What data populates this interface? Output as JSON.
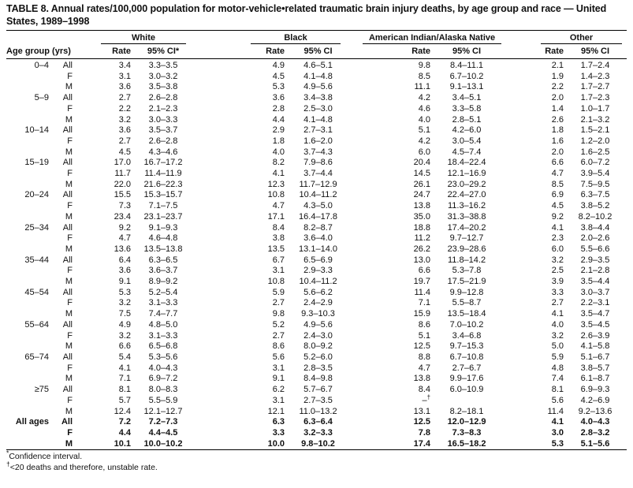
{
  "page": {
    "title": "TABLE 8. Annual rates/100,000 population for motor-vehicle•related traumatic brain injury deaths, by age group and race — United States, 1989–1998"
  },
  "table": {
    "age_header": "Age group (yrs)",
    "groups": [
      {
        "name": "White",
        "rate_label": "Rate",
        "ci_label": "95% CI*"
      },
      {
        "name": "Black",
        "rate_label": "Rate",
        "ci_label": "95% CI"
      },
      {
        "name": "American Indian/Alaska Native",
        "rate_label": "Rate",
        "ci_label": "95% CI"
      },
      {
        "name": "Other",
        "rate_label": "Rate",
        "ci_label": "95% CI"
      }
    ],
    "rows": [
      {
        "age": "0–4",
        "sex": "All",
        "w_rate": "3.4",
        "w_ci": "3.3–3.5",
        "b_rate": "4.9",
        "b_ci": "4.6–5.1",
        "ai_rate": "9.8",
        "ai_ci": "8.4–11.1",
        "o_rate": "2.1",
        "o_ci": "1.7–2.4"
      },
      {
        "age": "",
        "sex": "F",
        "w_rate": "3.1",
        "w_ci": "3.0–3.2",
        "b_rate": "4.5",
        "b_ci": "4.1–4.8",
        "ai_rate": "8.5",
        "ai_ci": "6.7–10.2",
        "o_rate": "1.9",
        "o_ci": "1.4–2.3"
      },
      {
        "age": "",
        "sex": "M",
        "w_rate": "3.6",
        "w_ci": "3.5–3.8",
        "b_rate": "5.3",
        "b_ci": "4.9–5.6",
        "ai_rate": "11.1",
        "ai_ci": "9.1–13.1",
        "o_rate": "2.2",
        "o_ci": "1.7–2.7"
      },
      {
        "age": "5–9",
        "sex": "All",
        "w_rate": "2.7",
        "w_ci": "2.6–2.8",
        "b_rate": "3.6",
        "b_ci": "3.4–3.8",
        "ai_rate": "4.2",
        "ai_ci": "3.4–5.1",
        "o_rate": "2.0",
        "o_ci": "1.7–2.3"
      },
      {
        "age": "",
        "sex": "F",
        "w_rate": "2.2",
        "w_ci": "2.1–2.3",
        "b_rate": "2.8",
        "b_ci": "2.5–3.0",
        "ai_rate": "4.6",
        "ai_ci": "3.3–5.8",
        "o_rate": "1.4",
        "o_ci": "1.0–1.7"
      },
      {
        "age": "",
        "sex": "M",
        "w_rate": "3.2",
        "w_ci": "3.0–3.3",
        "b_rate": "4.4",
        "b_ci": "4.1–4.8",
        "ai_rate": "4.0",
        "ai_ci": "2.8–5.1",
        "o_rate": "2.6",
        "o_ci": "2.1–3.2"
      },
      {
        "age": "10–14",
        "sex": "All",
        "w_rate": "3.6",
        "w_ci": "3.5–3.7",
        "b_rate": "2.9",
        "b_ci": "2.7–3.1",
        "ai_rate": "5.1",
        "ai_ci": "4.2–6.0",
        "o_rate": "1.8",
        "o_ci": "1.5–2.1"
      },
      {
        "age": "",
        "sex": "F",
        "w_rate": "2.7",
        "w_ci": "2.6–2.8",
        "b_rate": "1.8",
        "b_ci": "1.6–2.0",
        "ai_rate": "4.2",
        "ai_ci": "3.0–5.4",
        "o_rate": "1.6",
        "o_ci": "1.2–2.0"
      },
      {
        "age": "",
        "sex": "M",
        "w_rate": "4.5",
        "w_ci": "4.3–4.6",
        "b_rate": "4.0",
        "b_ci": "3.7–4.3",
        "ai_rate": "6.0",
        "ai_ci": "4.5–7.4",
        "o_rate": "2.0",
        "o_ci": "1.6–2.5"
      },
      {
        "age": "15–19",
        "sex": "All",
        "w_rate": "17.0",
        "w_ci": "16.7–17.2",
        "b_rate": "8.2",
        "b_ci": "7.9–8.6",
        "ai_rate": "20.4",
        "ai_ci": "18.4–22.4",
        "o_rate": "6.6",
        "o_ci": "6.0–7.2"
      },
      {
        "age": "",
        "sex": "F",
        "w_rate": "11.7",
        "w_ci": "11.4–11.9",
        "b_rate": "4.1",
        "b_ci": "3.7–4.4",
        "ai_rate": "14.5",
        "ai_ci": "12.1–16.9",
        "o_rate": "4.7",
        "o_ci": "3.9–5.4"
      },
      {
        "age": "",
        "sex": "M",
        "w_rate": "22.0",
        "w_ci": "21.6–22.3",
        "b_rate": "12.3",
        "b_ci": "11.7–12.9",
        "ai_rate": "26.1",
        "ai_ci": "23.0–29.2",
        "o_rate": "8.5",
        "o_ci": "7.5–9.5"
      },
      {
        "age": "20–24",
        "sex": "All",
        "w_rate": "15.5",
        "w_ci": "15.3–15.7",
        "b_rate": "10.8",
        "b_ci": "10.4–11.2",
        "ai_rate": "24.7",
        "ai_ci": "22.4–27.0",
        "o_rate": "6.9",
        "o_ci": "6.3–7.5"
      },
      {
        "age": "",
        "sex": "F",
        "w_rate": "7.3",
        "w_ci": "7.1–7.5",
        "b_rate": "4.7",
        "b_ci": "4.3–5.0",
        "ai_rate": "13.8",
        "ai_ci": "11.3–16.2",
        "o_rate": "4.5",
        "o_ci": "3.8–5.2"
      },
      {
        "age": "",
        "sex": "M",
        "w_rate": "23.4",
        "w_ci": "23.1–23.7",
        "b_rate": "17.1",
        "b_ci": "16.4–17.8",
        "ai_rate": "35.0",
        "ai_ci": "31.3–38.8",
        "o_rate": "9.2",
        "o_ci": "8.2–10.2"
      },
      {
        "age": "25–34",
        "sex": "All",
        "w_rate": "9.2",
        "w_ci": "9.1–9.3",
        "b_rate": "8.4",
        "b_ci": "8.2–8.7",
        "ai_rate": "18.8",
        "ai_ci": "17.4–20.2",
        "o_rate": "4.1",
        "o_ci": "3.8–4.4"
      },
      {
        "age": "",
        "sex": "F",
        "w_rate": "4.7",
        "w_ci": "4.6–4.8",
        "b_rate": "3.8",
        "b_ci": "3.6–4.0",
        "ai_rate": "11.2",
        "ai_ci": "9.7–12.7",
        "o_rate": "2.3",
        "o_ci": "2.0–2.6"
      },
      {
        "age": "",
        "sex": "M",
        "w_rate": "13.6",
        "w_ci": "13.5–13.8",
        "b_rate": "13.5",
        "b_ci": "13.1–14.0",
        "ai_rate": "26.2",
        "ai_ci": "23.9–28.6",
        "o_rate": "6.0",
        "o_ci": "5.5–6.6"
      },
      {
        "age": "35–44",
        "sex": "All",
        "w_rate": "6.4",
        "w_ci": "6.3–6.5",
        "b_rate": "6.7",
        "b_ci": "6.5–6.9",
        "ai_rate": "13.0",
        "ai_ci": "11.8–14.2",
        "o_rate": "3.2",
        "o_ci": "2.9–3.5"
      },
      {
        "age": "",
        "sex": "F",
        "w_rate": "3.6",
        "w_ci": "3.6–3.7",
        "b_rate": "3.1",
        "b_ci": "2.9–3.3",
        "ai_rate": "6.6",
        "ai_ci": "5.3–7.8",
        "o_rate": "2.5",
        "o_ci": "2.1–2.8"
      },
      {
        "age": "",
        "sex": "M",
        "w_rate": "9.1",
        "w_ci": "8.9–9.2",
        "b_rate": "10.8",
        "b_ci": "10.4–11.2",
        "ai_rate": "19.7",
        "ai_ci": "17.5–21.9",
        "o_rate": "3.9",
        "o_ci": "3.5–4.4"
      },
      {
        "age": "45–54",
        "sex": "All",
        "w_rate": "5.3",
        "w_ci": "5.2–5.4",
        "b_rate": "5.9",
        "b_ci": "5.6–6.2",
        "ai_rate": "11.4",
        "ai_ci": "9.9–12.8",
        "o_rate": "3.3",
        "o_ci": "3.0–3.7"
      },
      {
        "age": "",
        "sex": "F",
        "w_rate": "3.2",
        "w_ci": "3.1–3.3",
        "b_rate": "2.7",
        "b_ci": "2.4–2.9",
        "ai_rate": "7.1",
        "ai_ci": "5.5–8.7",
        "o_rate": "2.7",
        "o_ci": "2.2–3.1"
      },
      {
        "age": "",
        "sex": "M",
        "w_rate": "7.5",
        "w_ci": "7.4–7.7",
        "b_rate": "9.8",
        "b_ci": "9.3–10.3",
        "ai_rate": "15.9",
        "ai_ci": "13.5–18.4",
        "o_rate": "4.1",
        "o_ci": "3.5–4.7"
      },
      {
        "age": "55–64",
        "sex": "All",
        "w_rate": "4.9",
        "w_ci": "4.8–5.0",
        "b_rate": "5.2",
        "b_ci": "4.9–5.6",
        "ai_rate": "8.6",
        "ai_ci": "7.0–10.2",
        "o_rate": "4.0",
        "o_ci": "3.5–4.5"
      },
      {
        "age": "",
        "sex": "F",
        "w_rate": "3.2",
        "w_ci": "3.1–3.3",
        "b_rate": "2.7",
        "b_ci": "2.4–3.0",
        "ai_rate": "5.1",
        "ai_ci": "3.4–6.8",
        "o_rate": "3.2",
        "o_ci": "2.6–3.9"
      },
      {
        "age": "",
        "sex": "M",
        "w_rate": "6.6",
        "w_ci": "6.5–6.8",
        "b_rate": "8.6",
        "b_ci": "8.0–9.2",
        "ai_rate": "12.5",
        "ai_ci": "9.7–15.3",
        "o_rate": "5.0",
        "o_ci": "4.1–5.8"
      },
      {
        "age": "65–74",
        "sex": "All",
        "w_rate": "5.4",
        "w_ci": "5.3–5.6",
        "b_rate": "5.6",
        "b_ci": "5.2–6.0",
        "ai_rate": "8.8",
        "ai_ci": "6.7–10.8",
        "o_rate": "5.9",
        "o_ci": "5.1–6.7"
      },
      {
        "age": "",
        "sex": "F",
        "w_rate": "4.1",
        "w_ci": "4.0–4.3",
        "b_rate": "3.1",
        "b_ci": "2.8–3.5",
        "ai_rate": "4.7",
        "ai_ci": "2.7–6.7",
        "o_rate": "4.8",
        "o_ci": "3.8–5.7"
      },
      {
        "age": "",
        "sex": "M",
        "w_rate": "7.1",
        "w_ci": "6.9–7.2",
        "b_rate": "9.1",
        "b_ci": "8.4–9.8",
        "ai_rate": "13.8",
        "ai_ci": "9.9–17.6",
        "o_rate": "7.4",
        "o_ci": "6.1–8.7"
      },
      {
        "age": "≥75",
        "sex": "All",
        "w_rate": "8.1",
        "w_ci": "8.0–8.3",
        "b_rate": "6.2",
        "b_ci": "5.7–6.7",
        "ai_rate": "8.4",
        "ai_ci": "6.0–10.9",
        "o_rate": "8.1",
        "o_ci": "6.9–9.3"
      },
      {
        "age": "",
        "sex": "F",
        "w_rate": "5.7",
        "w_ci": "5.5–5.9",
        "b_rate": "3.1",
        "b_ci": "2.7–3.5",
        "ai_rate": "–†",
        "ai_ci": "",
        "o_rate": "5.6",
        "o_ci": "4.2–6.9"
      },
      {
        "age": "",
        "sex": "M",
        "w_rate": "12.4",
        "w_ci": "12.1–12.7",
        "b_rate": "12.1",
        "b_ci": "11.0–13.2",
        "ai_rate": "13.1",
        "ai_ci": "8.2–18.1",
        "o_rate": "11.4",
        "o_ci": "9.2–13.6"
      },
      {
        "age": "All ages",
        "sex": "All",
        "bold": true,
        "w_rate": "7.2",
        "w_ci": "7.2–7.3",
        "b_rate": "6.3",
        "b_ci": "6.3–6.4",
        "ai_rate": "12.5",
        "ai_ci": "12.0–12.9",
        "o_rate": "4.1",
        "o_ci": "4.0–4.3"
      },
      {
        "age": "",
        "sex": "F",
        "bold": true,
        "w_rate": "4.4",
        "w_ci": "4.4–4.5",
        "b_rate": "3.3",
        "b_ci": "3.2–3.3",
        "ai_rate": "7.8",
        "ai_ci": "7.3–8.3",
        "o_rate": "3.0",
        "o_ci": "2.8–3.2"
      },
      {
        "age": "",
        "sex": "M",
        "bold": true,
        "w_rate": "10.1",
        "w_ci": "10.0–10.2",
        "b_rate": "10.0",
        "b_ci": "9.8–10.2",
        "ai_rate": "17.4",
        "ai_ci": "16.5–18.2",
        "o_rate": "5.3",
        "o_ci": "5.1–5.6"
      }
    ]
  },
  "footnotes": [
    {
      "marker": "*",
      "text": "Confidence interval."
    },
    {
      "marker": "†",
      "text": "<20 deaths and therefore, unstable rate."
    }
  ]
}
